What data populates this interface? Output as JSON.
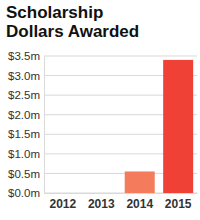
{
  "chart_data": {
    "type": "bar",
    "title": "Scholarship Dollars Awarded",
    "categories": [
      "2012",
      "2013",
      "2014",
      "2015"
    ],
    "values": [
      0,
      0,
      0.55,
      3.4
    ],
    "colors": [
      "#ef4136",
      "#ef4136",
      "#f47c5c",
      "#ef4136"
    ],
    "ylim": [
      0,
      3.5
    ],
    "yticks": [
      {
        "value": 0,
        "label": "$0.0m"
      },
      {
        "value": 0.5,
        "label": "$0.5m"
      },
      {
        "value": 1,
        "label": "$1.0m"
      },
      {
        "value": 1.5,
        "label": "$1.5m"
      },
      {
        "value": 2,
        "label": "$2.0m"
      },
      {
        "value": 2.5,
        "label": "$2.5m"
      },
      {
        "value": 3,
        "label": "$3.0m"
      },
      {
        "value": 3.5,
        "label": "$3.5m"
      }
    ],
    "grid": true
  }
}
